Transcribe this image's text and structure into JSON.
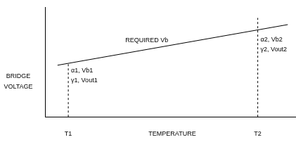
{
  "chart_data": {
    "type": "line",
    "xlabel": "TEMPERATURE",
    "ylabel": "BRIDGE VOLTAGE",
    "xlim": [
      0,
      100
    ],
    "ylim": [
      0,
      100
    ],
    "xticks": [
      {
        "value": 9.3,
        "label": "T1"
      },
      {
        "value": 85,
        "label": "T2"
      }
    ],
    "tick_labels": "x",
    "grid": false,
    "series": [
      {
        "name": "REQUIRED Vb",
        "x": [
          5,
          97
        ],
        "values": [
          47,
          84
        ],
        "color": "#000000",
        "line_style": "solid"
      }
    ],
    "vlines": [
      {
        "x": 9.3,
        "ymax": 48,
        "line_style": "dashed"
      },
      {
        "x": 85,
        "ymax": 90,
        "line_style": "dashed"
      }
    ],
    "annotations": [
      {
        "x": 9.3,
        "y": 42,
        "text": [
          "α1, Vb1",
          "γ1, Vout1"
        ]
      },
      {
        "x": 85,
        "y": 70,
        "text": [
          "α2, Vb2",
          "γ2, Vout2"
        ]
      }
    ]
  }
}
